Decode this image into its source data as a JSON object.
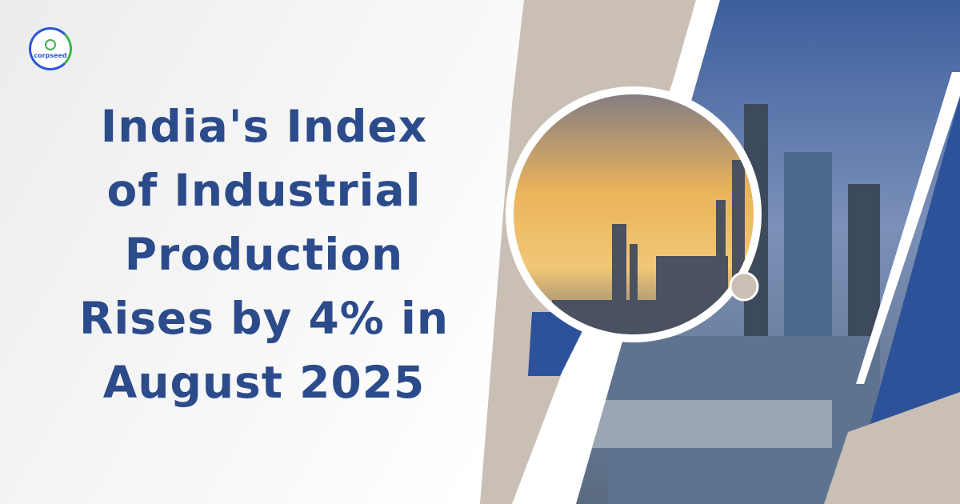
{
  "logo": {
    "text": "corpseed"
  },
  "headline": {
    "lines": [
      "India's Index",
      "of Industrial",
      "Production",
      "Rises by 4% in",
      "August 2025"
    ]
  },
  "colors": {
    "brand_blue": "#2b4b8a",
    "beige": "#c9bfb5",
    "accent_blue": "#2d5299"
  }
}
